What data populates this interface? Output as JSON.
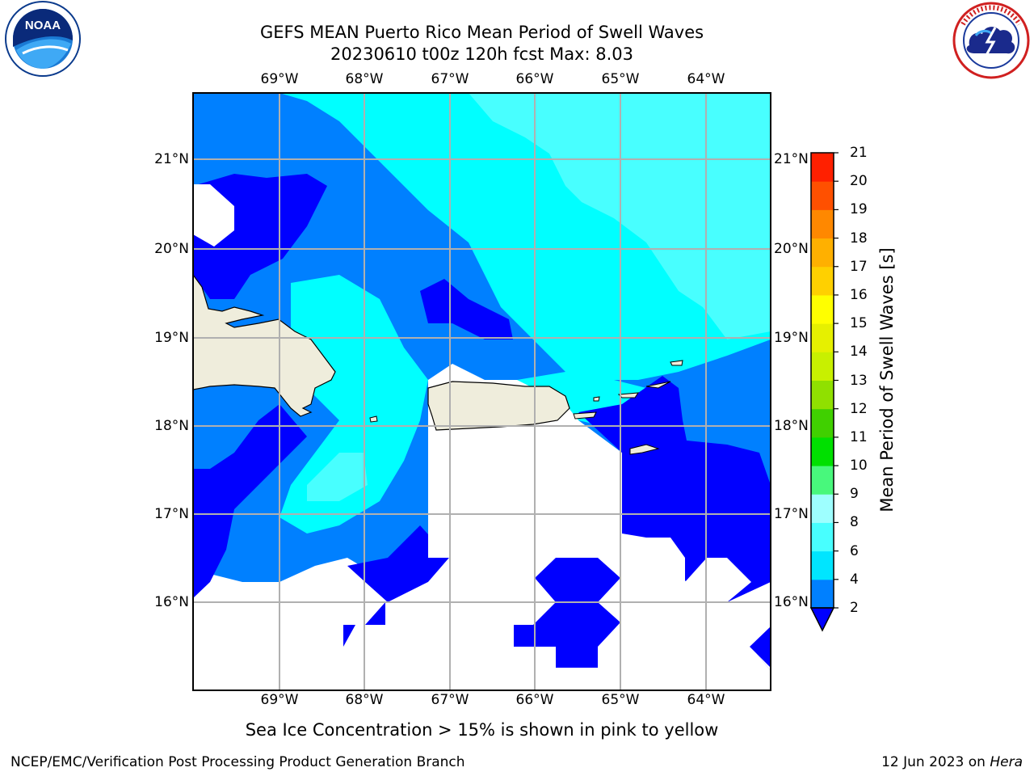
{
  "title_line1": "GEFS MEAN Puerto Rico Mean Period of Swell Waves",
  "title_line2": "20230610 t00z 120h fcst   Max: 8.03",
  "lon_labels": [
    "69°W",
    "68°W",
    "67°W",
    "66°W",
    "65°W",
    "64°W"
  ],
  "lat_labels": [
    "21°N",
    "20°N",
    "19°N",
    "18°N",
    "17°N",
    "16°N"
  ],
  "colorbar": {
    "label": "Mean Period of Swell Waves [s]",
    "ticks": [
      "2",
      "4",
      "6",
      "8",
      "9",
      "10",
      "11",
      "12",
      "13",
      "14",
      "15",
      "16",
      "17",
      "18",
      "19",
      "20",
      "21"
    ],
    "colors": [
      "#0080ff",
      "#00e5ff",
      "#48ffff",
      "#9effff",
      "#48f87c",
      "#00e000",
      "#40d000",
      "#90e000",
      "#c8f000",
      "#e6f000",
      "#ffff00",
      "#ffd000",
      "#ffb000",
      "#ff8800",
      "#ff5000",
      "#ff2000"
    ],
    "extend_color": "#0000ff"
  },
  "subtitle": "Sea Ice Concentration > 15% is shown in pink to yellow",
  "footer_left": "NCEP/EMC/Verification Post Processing Product Generation Branch",
  "footer_right_prefix": "12 Jun 2023 on ",
  "footer_right_host": "Hera",
  "logos": {
    "noaa": {
      "icon": "noaa-logo",
      "text": "NOAA"
    },
    "nws": {
      "icon": "nws-logo"
    }
  },
  "map_colors": {
    "land": "#efeddc",
    "band_2_4": "#0080ff",
    "band_4_6": "#00ffff",
    "band_6_8": "#48ffff",
    "below_2": "#0000ff",
    "no_data": "#ffffff",
    "grid": "#b0b0b0",
    "coast": "#000000"
  }
}
